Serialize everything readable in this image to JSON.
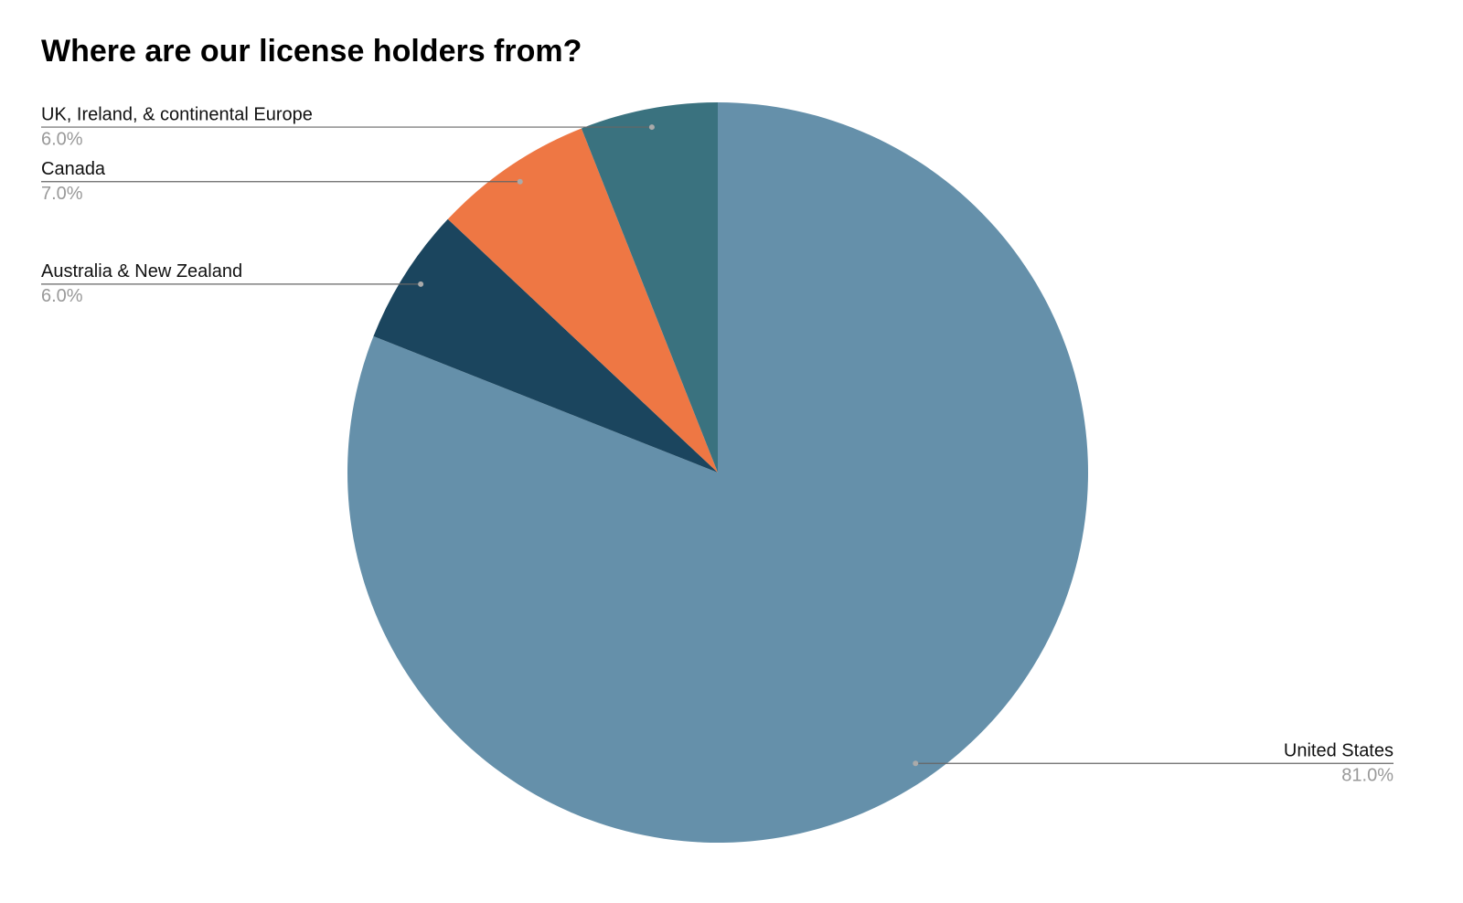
{
  "chart_data": {
    "type": "pie",
    "title": "Where are our license holders from?",
    "categories": [
      "United States",
      "Australia & New Zealand",
      "Canada",
      "UK, Ireland, & continental Europe"
    ],
    "values": [
      81,
      6,
      7,
      6
    ],
    "value_labels": [
      "81.0%",
      "6.0%",
      "7.0%",
      "6.0%"
    ],
    "colors": [
      "#6590aa",
      "#1b455e",
      "#ee7744",
      "#3a727f"
    ]
  }
}
